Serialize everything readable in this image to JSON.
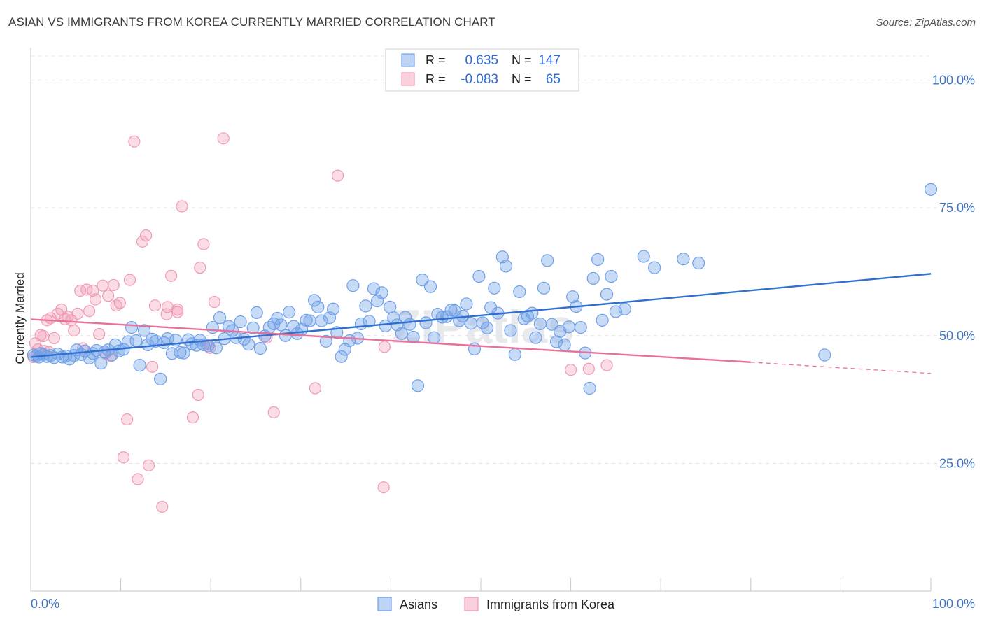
{
  "title": "ASIAN VS IMMIGRANTS FROM KOREA CURRENTLY MARRIED CORRELATION CHART",
  "source": "Source: ZipAtlas.com",
  "watermark": "ZIPatlas",
  "colors": {
    "asians": "#6fa0e8",
    "korea": "#f09ab4",
    "asians_line": "#2f6fd0",
    "korea_line": "#e8719a",
    "tick_label": "#3f73c4"
  },
  "stats_legend": [
    {
      "series": "asians",
      "r_label": "R =",
      "r_value": "0.635",
      "n_label": "N =",
      "n_value": "147"
    },
    {
      "series": "korea",
      "r_label": "R =",
      "r_value": "-0.083",
      "n_label": "N =",
      "n_value": "65"
    }
  ],
  "bottom_legend": [
    {
      "series": "asians",
      "label": "Asians"
    },
    {
      "series": "korea",
      "label": "Immigrants from Korea"
    }
  ],
  "chart_data": {
    "type": "scatter",
    "title": "ASIAN VS IMMIGRANTS FROM KOREA CURRENTLY MARRIED CORRELATION CHART",
    "xlabel": "",
    "ylabel": "Currently Married",
    "xlim": [
      0,
      100
    ],
    "ylim": [
      0,
      105
    ],
    "x_tick_labels": [
      "0.0%",
      "100.0%"
    ],
    "y_ticks": [
      25,
      50,
      75,
      100
    ],
    "y_tick_labels": [
      "25.0%",
      "50.0%",
      "75.0%",
      "100.0%"
    ],
    "grid": true,
    "legend_position": "top-center",
    "series": [
      {
        "name": "Asians",
        "trend": {
          "x": [
            0,
            100
          ],
          "y": [
            45.8,
            62.1
          ]
        },
        "points": [
          [
            0.3,
            46.2
          ],
          [
            0.6,
            46.0
          ],
          [
            0.9,
            45.8
          ],
          [
            1.1,
            46.5
          ],
          [
            1.4,
            46.3
          ],
          [
            1.8,
            45.9
          ],
          [
            2.2,
            46.1
          ],
          [
            2.6,
            45.7
          ],
          [
            3.0,
            46.4
          ],
          [
            3.5,
            45.8
          ],
          [
            3.9,
            46.0
          ],
          [
            4.3,
            45.4
          ],
          [
            4.8,
            46.1
          ],
          [
            5.1,
            47.2
          ],
          [
            5.6,
            46.3
          ],
          [
            6.0,
            47.0
          ],
          [
            6.5,
            45.6
          ],
          [
            6.9,
            46.5
          ],
          [
            7.3,
            47.1
          ],
          [
            7.8,
            44.6
          ],
          [
            8.2,
            46.8
          ],
          [
            8.6,
            47.2
          ],
          [
            9.0,
            46.2
          ],
          [
            9.4,
            48.2
          ],
          [
            9.8,
            47.0
          ],
          [
            10.3,
            47.3
          ],
          [
            10.8,
            48.8
          ],
          [
            11.2,
            51.6
          ],
          [
            11.7,
            49.0
          ],
          [
            12.1,
            44.2
          ],
          [
            12.6,
            51.0
          ],
          [
            13.0,
            48.2
          ],
          [
            13.5,
            49.3
          ],
          [
            13.9,
            48.9
          ],
          [
            14.4,
            41.5
          ],
          [
            14.8,
            48.6
          ],
          [
            15.2,
            49.4
          ],
          [
            15.7,
            46.5
          ],
          [
            16.1,
            49.1
          ],
          [
            16.6,
            46.7
          ],
          [
            17.0,
            46.6
          ],
          [
            17.5,
            49.2
          ],
          [
            17.9,
            48.4
          ],
          [
            18.4,
            48.1
          ],
          [
            18.8,
            49.1
          ],
          [
            19.2,
            48.2
          ],
          [
            19.7,
            48.0
          ],
          [
            20.2,
            51.6
          ],
          [
            20.6,
            47.6
          ],
          [
            21.0,
            53.5
          ],
          [
            21.5,
            49.4
          ],
          [
            22.0,
            51.8
          ],
          [
            22.4,
            51.0
          ],
          [
            22.8,
            49.6
          ],
          [
            23.3,
            52.7
          ],
          [
            23.7,
            49.3
          ],
          [
            24.2,
            48.3
          ],
          [
            24.7,
            51.5
          ],
          [
            25.1,
            54.5
          ],
          [
            25.5,
            47.5
          ],
          [
            26.0,
            49.9
          ],
          [
            26.5,
            51.6
          ],
          [
            27.0,
            52.3
          ],
          [
            27.4,
            53.4
          ],
          [
            27.8,
            52.1
          ],
          [
            28.3,
            50.0
          ],
          [
            28.7,
            54.6
          ],
          [
            29.2,
            51.8
          ],
          [
            29.6,
            50.4
          ],
          [
            30.1,
            51.2
          ],
          [
            30.6,
            53.0
          ],
          [
            31.0,
            52.9
          ],
          [
            31.5,
            56.9
          ],
          [
            31.9,
            55.6
          ],
          [
            32.3,
            52.9
          ],
          [
            32.8,
            48.9
          ],
          [
            33.2,
            53.5
          ],
          [
            33.6,
            55.2
          ],
          [
            34.0,
            50.6
          ],
          [
            34.5,
            45.9
          ],
          [
            34.9,
            47.3
          ],
          [
            35.4,
            49.0
          ],
          [
            35.8,
            59.8
          ],
          [
            36.3,
            49.5
          ],
          [
            36.7,
            52.3
          ],
          [
            37.2,
            55.8
          ],
          [
            37.6,
            52.8
          ],
          [
            38.1,
            59.2
          ],
          [
            38.5,
            56.8
          ],
          [
            39.0,
            58.4
          ],
          [
            39.4,
            51.9
          ],
          [
            39.9,
            55.6
          ],
          [
            40.3,
            53.5
          ],
          [
            40.7,
            52.1
          ],
          [
            41.2,
            50.4
          ],
          [
            41.6,
            53.6
          ],
          [
            42.1,
            52.2
          ],
          [
            42.5,
            49.7
          ],
          [
            43.0,
            40.2
          ],
          [
            43.5,
            60.9
          ],
          [
            43.9,
            52.5
          ],
          [
            44.4,
            59.6
          ],
          [
            44.8,
            49.6
          ],
          [
            45.2,
            54.2
          ],
          [
            45.7,
            53.6
          ],
          [
            46.2,
            53.7
          ],
          [
            46.7,
            55.0
          ],
          [
            47.1,
            54.9
          ],
          [
            47.6,
            52.9
          ],
          [
            48.0,
            53.8
          ],
          [
            48.4,
            56.2
          ],
          [
            48.9,
            52.4
          ],
          [
            49.3,
            47.4
          ],
          [
            49.8,
            61.6
          ],
          [
            50.2,
            52.5
          ],
          [
            50.7,
            51.5
          ],
          [
            51.1,
            55.5
          ],
          [
            51.5,
            59.3
          ],
          [
            51.9,
            54.4
          ],
          [
            52.4,
            65.4
          ],
          [
            52.8,
            63.6
          ],
          [
            53.3,
            51.0
          ],
          [
            53.8,
            46.3
          ],
          [
            54.3,
            58.6
          ],
          [
            54.8,
            53.3
          ],
          [
            55.2,
            53.8
          ],
          [
            55.7,
            54.4
          ],
          [
            56.1,
            49.6
          ],
          [
            56.6,
            52.3
          ],
          [
            57.0,
            59.3
          ],
          [
            57.4,
            64.7
          ],
          [
            57.9,
            52.2
          ],
          [
            58.4,
            48.8
          ],
          [
            58.8,
            50.8
          ],
          [
            59.3,
            48.2
          ],
          [
            59.8,
            51.7
          ],
          [
            60.2,
            57.6
          ],
          [
            60.6,
            55.7
          ],
          [
            61.1,
            51.6
          ],
          [
            61.6,
            46.6
          ],
          [
            62.1,
            39.7
          ],
          [
            62.5,
            61.2
          ],
          [
            63.0,
            64.9
          ],
          [
            63.5,
            53.0
          ],
          [
            64.0,
            58.1
          ],
          [
            64.5,
            61.6
          ],
          [
            65.0,
            54.7
          ],
          [
            66.0,
            55.2
          ],
          [
            68.1,
            65.5
          ],
          [
            69.3,
            63.3
          ],
          [
            72.5,
            65.0
          ],
          [
            74.2,
            64.2
          ],
          [
            88.2,
            46.2
          ],
          [
            100.0,
            78.6
          ]
        ]
      },
      {
        "name": "Immigrants from Korea",
        "trend": {
          "x": [
            0,
            80
          ],
          "y": [
            53.2,
            44.8
          ]
        },
        "trend_dashed_extension": {
          "x": [
            80,
            100
          ],
          "y": [
            44.8,
            42.6
          ]
        },
        "points": [
          [
            0.3,
            45.8
          ],
          [
            0.5,
            48.5
          ],
          [
            0.8,
            47.3
          ],
          [
            1.1,
            50.1
          ],
          [
            1.4,
            49.9
          ],
          [
            1.8,
            53.0
          ],
          [
            2.2,
            53.4
          ],
          [
            2.6,
            49.5
          ],
          [
            3.0,
            54.3
          ],
          [
            3.4,
            55.1
          ],
          [
            3.8,
            53.2
          ],
          [
            4.1,
            53.7
          ],
          [
            4.5,
            53.0
          ],
          [
            4.8,
            51.0
          ],
          [
            5.2,
            54.3
          ],
          [
            5.5,
            58.8
          ],
          [
            5.8,
            47.5
          ],
          [
            6.2,
            59.0
          ],
          [
            6.5,
            54.8
          ],
          [
            6.9,
            58.8
          ],
          [
            7.2,
            57.1
          ],
          [
            7.6,
            50.3
          ],
          [
            8.0,
            59.8
          ],
          [
            8.3,
            46.5
          ],
          [
            8.6,
            57.8
          ],
          [
            8.9,
            46.0
          ],
          [
            9.2,
            59.9
          ],
          [
            9.5,
            55.9
          ],
          [
            9.9,
            56.4
          ],
          [
            10.3,
            26.2
          ],
          [
            10.7,
            33.6
          ],
          [
            11.0,
            60.9
          ],
          [
            11.5,
            88.0
          ],
          [
            11.9,
            21.9
          ],
          [
            12.4,
            68.4
          ],
          [
            12.8,
            69.6
          ],
          [
            13.1,
            24.6
          ],
          [
            13.5,
            43.9
          ],
          [
            13.8,
            55.9
          ],
          [
            14.6,
            16.5
          ],
          [
            15.1,
            54.2
          ],
          [
            15.2,
            55.6
          ],
          [
            15.6,
            61.7
          ],
          [
            16.3,
            55.1
          ],
          [
            16.3,
            54.6
          ],
          [
            16.8,
            75.3
          ],
          [
            18.0,
            34.0
          ],
          [
            18.6,
            38.4
          ],
          [
            18.8,
            63.3
          ],
          [
            19.2,
            67.9
          ],
          [
            19.5,
            48.3
          ],
          [
            19.9,
            47.6
          ],
          [
            20.4,
            56.6
          ],
          [
            21.4,
            88.6
          ],
          [
            26.2,
            49.6
          ],
          [
            27.0,
            35.0
          ],
          [
            31.6,
            39.7
          ],
          [
            34.1,
            81.3
          ],
          [
            39.2,
            20.3
          ],
          [
            39.3,
            47.8
          ],
          [
            62.0,
            43.5
          ],
          [
            60.0,
            43.3
          ],
          [
            64.0,
            44.2
          ],
          [
            1.5,
            47.0
          ],
          [
            2.0,
            46.8
          ]
        ]
      }
    ]
  }
}
